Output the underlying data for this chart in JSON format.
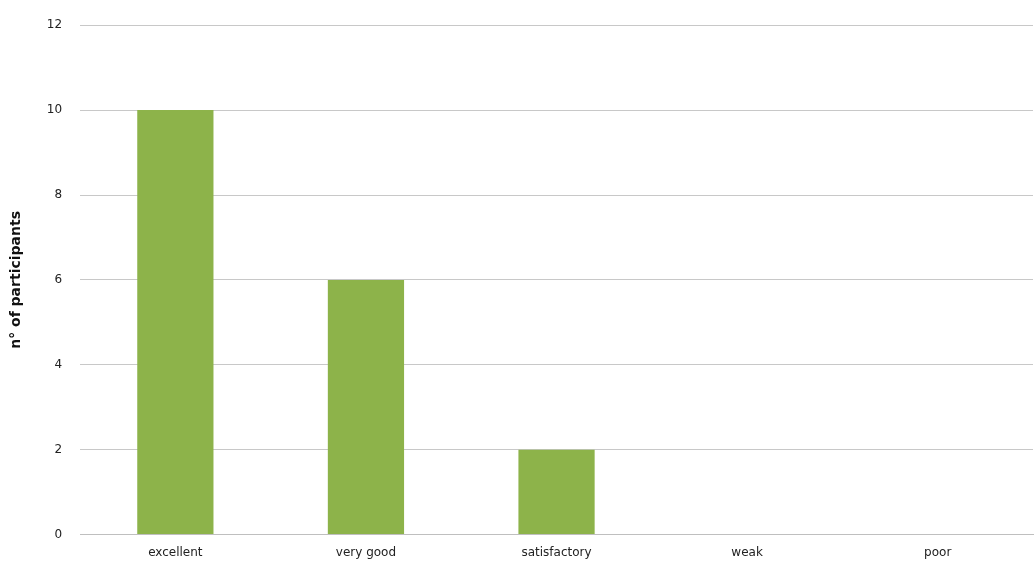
{
  "chart_data": {
    "type": "bar",
    "ylabel": "n° of participants",
    "categories": [
      "excellent",
      "very good",
      "satisfactory",
      "weak",
      "poor"
    ],
    "values": [
      10,
      6,
      2,
      0,
      0
    ],
    "color": "#8db34a",
    "ylim": [
      0,
      12
    ],
    "yticks": [
      0,
      2,
      4,
      6,
      8,
      10,
      12
    ],
    "grid": "y",
    "legend": false
  }
}
